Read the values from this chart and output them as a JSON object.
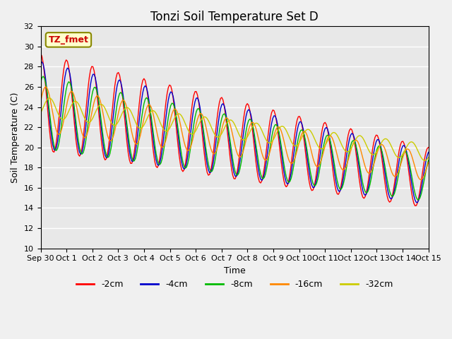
{
  "title": "Tonzi Soil Temperature Set D",
  "xlabel": "Time",
  "ylabel": "Soil Temperature (C)",
  "ylim": [
    10,
    32
  ],
  "x_tick_labels": [
    "Sep 30",
    "Oct 1",
    "Oct 2",
    "Oct 3",
    "Oct 4",
    "Oct 5",
    "Oct 6",
    "Oct 7",
    "Oct 8",
    "Oct 9",
    "Oct 10",
    "Oct 11",
    "Oct 12",
    "Oct 13",
    "Oct 14",
    "Oct 15"
  ],
  "legend_labels": [
    "-2cm",
    "-4cm",
    "-8cm",
    "-16cm",
    "-32cm"
  ],
  "legend_colors": [
    "#ff0000",
    "#0000cc",
    "#00bb00",
    "#ff8800",
    "#cccc00"
  ],
  "annotation_text": "TZ_fmet",
  "annotation_color": "#cc0000",
  "annotation_bg": "#ffffcc",
  "n_points": 320
}
